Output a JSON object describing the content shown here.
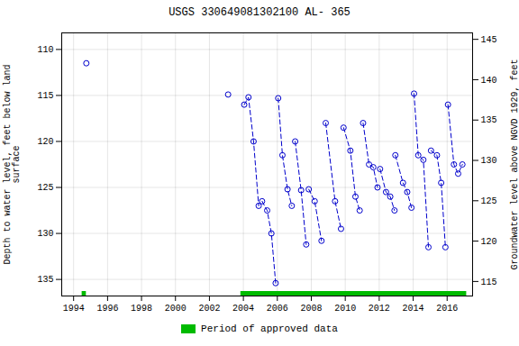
{
  "chart_data": {
    "type": "line",
    "title": "USGS 330649081302100 AL- 365",
    "ylabel": "Depth to water level, feet below land\nsurface",
    "y2label": "Groundwater level above NGVD 1929, feet",
    "x": [
      1994.75,
      null,
      2003.1,
      null,
      2004.05,
      2004.3,
      2004.6,
      2004.9,
      null,
      2005.1,
      2005.4,
      2005.65,
      2005.9,
      null,
      2006.05,
      2006.3,
      2006.6,
      2006.85,
      null,
      2007.05,
      2007.4,
      2007.7,
      null,
      2007.85,
      2008.2,
      2008.6,
      null,
      2008.85,
      2009.4,
      2009.75,
      null,
      2009.9,
      2010.3,
      2010.6,
      2010.85,
      null,
      2011.05,
      2011.4,
      2011.65,
      2011.9,
      null,
      2012.05,
      2012.4,
      2012.65,
      2012.9,
      null,
      2012.95,
      2013.4,
      2013.65,
      2013.9,
      null,
      2014.05,
      2014.3,
      2014.6,
      2014.9,
      null,
      2015.05,
      2015.4,
      2015.65,
      2015.9,
      null,
      2016.05,
      2016.4,
      2016.65,
      2016.9
    ],
    "series": [
      {
        "color": "#0000cc",
        "marker": "circle",
        "line_style": "dashed",
        "values": [
          111.5,
          null,
          114.9,
          null,
          116.0,
          115.2,
          120.0,
          127.0,
          null,
          126.5,
          127.5,
          130.0,
          135.4,
          null,
          115.3,
          121.5,
          125.2,
          127.0,
          null,
          120.0,
          125.3,
          131.2,
          null,
          125.2,
          126.5,
          130.8,
          null,
          118.0,
          126.5,
          129.5,
          null,
          118.5,
          121.0,
          126.0,
          127.5,
          null,
          118.0,
          122.5,
          122.8,
          125.0,
          null,
          123.0,
          125.5,
          126.0,
          127.5,
          null,
          121.5,
          124.5,
          125.5,
          127.2,
          null,
          114.8,
          121.5,
          122.0,
          131.5,
          null,
          121.0,
          121.5,
          124.5,
          131.5,
          null,
          116.0,
          122.5,
          123.5,
          122.5
        ]
      }
    ],
    "xlim": [
      1993.3,
      2017.5
    ],
    "xticks": [
      1994,
      1996,
      1998,
      2000,
      2002,
      2004,
      2006,
      2008,
      2010,
      2012,
      2014,
      2016
    ],
    "ylim": [
      136.8,
      108.2
    ],
    "yticks": [
      110,
      115,
      120,
      125,
      130,
      135
    ],
    "y2lim": [
      113.2,
      145.8
    ],
    "y2ticks": [
      115,
      120,
      125,
      130,
      135,
      140,
      145
    ],
    "grid": true,
    "legend": "bottom",
    "approved_periods": {
      "name": "Period of approved data",
      "color": "#00bb00",
      "bars": [
        {
          "x": 1994.5,
          "width": 0.25
        },
        {
          "x": 2003.85,
          "width": 13.3
        }
      ]
    }
  }
}
